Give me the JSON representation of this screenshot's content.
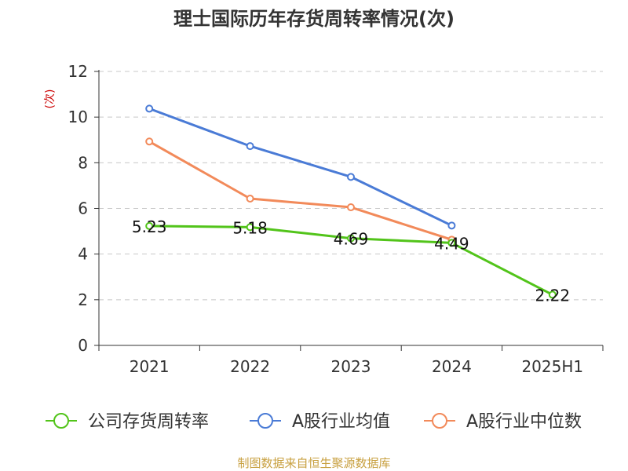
{
  "chart_data": {
    "type": "line",
    "title": "理士国际历年存货周转率情况(次)",
    "ylabel": "(次)",
    "xlabel": "",
    "categories": [
      "2021",
      "2022",
      "2023",
      "2024",
      "2025H1"
    ],
    "ylim": [
      0,
      12
    ],
    "yticks": [
      0,
      2,
      4,
      6,
      8,
      10,
      12
    ],
    "grid": true,
    "legend_position": "bottom",
    "series": [
      {
        "name": "公司存货周转率",
        "color": "#52c41a",
        "values": [
          5.23,
          5.18,
          4.69,
          4.49,
          2.22
        ],
        "labels": [
          "5.23",
          "5.18",
          "4.69",
          "4.49",
          "2.22"
        ]
      },
      {
        "name": "A股行业均值",
        "color": "#4a7bd6",
        "values": [
          10.37,
          8.73,
          7.38,
          5.25,
          null
        ]
      },
      {
        "name": "A股行业中位数",
        "color": "#f28a5a",
        "values": [
          8.93,
          6.43,
          6.05,
          4.63,
          null
        ]
      }
    ]
  },
  "footer": {
    "source": "制图数据来自恒生聚源数据库"
  }
}
